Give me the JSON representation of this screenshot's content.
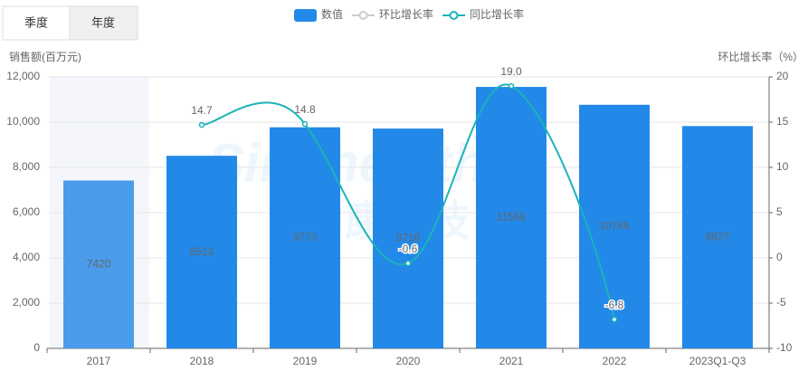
{
  "tabs": [
    "季度",
    "年度"
  ],
  "chart_data": {
    "type": "bar-line",
    "watermark": [
      "Sinohealth",
      "中康科技"
    ],
    "y_label": "销售额(百万元)",
    "y2_label": "环比增长率（%）",
    "categories": [
      "2017",
      "2018",
      "2019",
      "2020",
      "2021",
      "2022",
      "2023Q1-Q3"
    ],
    "series": [
      {
        "name": "数值",
        "type": "bar",
        "color": "#2389e8",
        "values": [
          7420,
          8513,
          9773,
          9716,
          11558,
          10768,
          9827
        ]
      },
      {
        "name": "环比增长率",
        "type": "line",
        "axis": "y2",
        "color": "#cccccc",
        "values": [
          null,
          null,
          null,
          null,
          null,
          null,
          null
        ]
      },
      {
        "name": "同比增长率",
        "type": "line",
        "axis": "y2",
        "color": "#1bb3b8",
        "values": [
          null,
          14.7,
          14.8,
          -0.6,
          19,
          -6.8,
          null
        ],
        "value_labels": [
          null,
          "14.7",
          "14.8",
          "-0.6",
          "19.0",
          "-6.8",
          null
        ]
      }
    ],
    "ylim": [
      0,
      12000
    ],
    "yticks": [
      0,
      {
        "value": 2000,
        "label": "2,000"
      },
      {
        "value": 4000,
        "label": "4,000"
      },
      {
        "value": 6000,
        "label": "6,000"
      },
      {
        "value": 8000,
        "label": "8,000"
      },
      {
        "value": 10000,
        "label": "10,000"
      },
      {
        "value": 12000,
        "label": "12,000"
      }
    ],
    "y2lim": [
      -10,
      20
    ],
    "y2ticks": [
      -10,
      -5,
      0,
      5,
      10,
      15,
      20
    ],
    "grid": true
  }
}
